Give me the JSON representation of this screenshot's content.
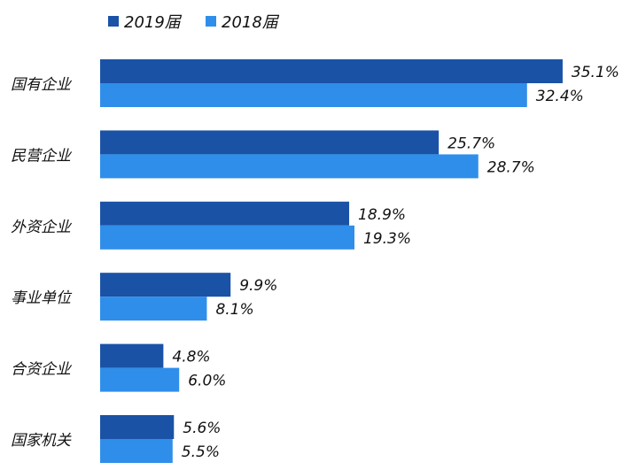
{
  "chart_data": {
    "type": "bar",
    "orientation": "horizontal",
    "categories": [
      "国有企业",
      "民营企业",
      "外资企业",
      "事业单位",
      "合资企业",
      "国家机关"
    ],
    "series": [
      {
        "name": "2019届",
        "color": "#1a52a6",
        "values": [
          35.1,
          25.7,
          18.9,
          9.9,
          4.8,
          5.6
        ],
        "labels": [
          "35.1%",
          "25.7%",
          "18.9%",
          "9.9%",
          "4.8%",
          "5.6%"
        ]
      },
      {
        "name": "2018届",
        "color": "#2f8eea",
        "values": [
          32.4,
          28.7,
          19.3,
          8.1,
          6.0,
          5.5
        ],
        "labels": [
          "32.4%",
          "28.7%",
          "19.3%",
          "8.1%",
          "6.0%",
          "5.5%"
        ]
      }
    ],
    "unit": "%",
    "xlim": [
      0,
      40
    ],
    "grid": false,
    "legend": "top-left",
    "title": "",
    "xlabel": "",
    "ylabel": ""
  }
}
